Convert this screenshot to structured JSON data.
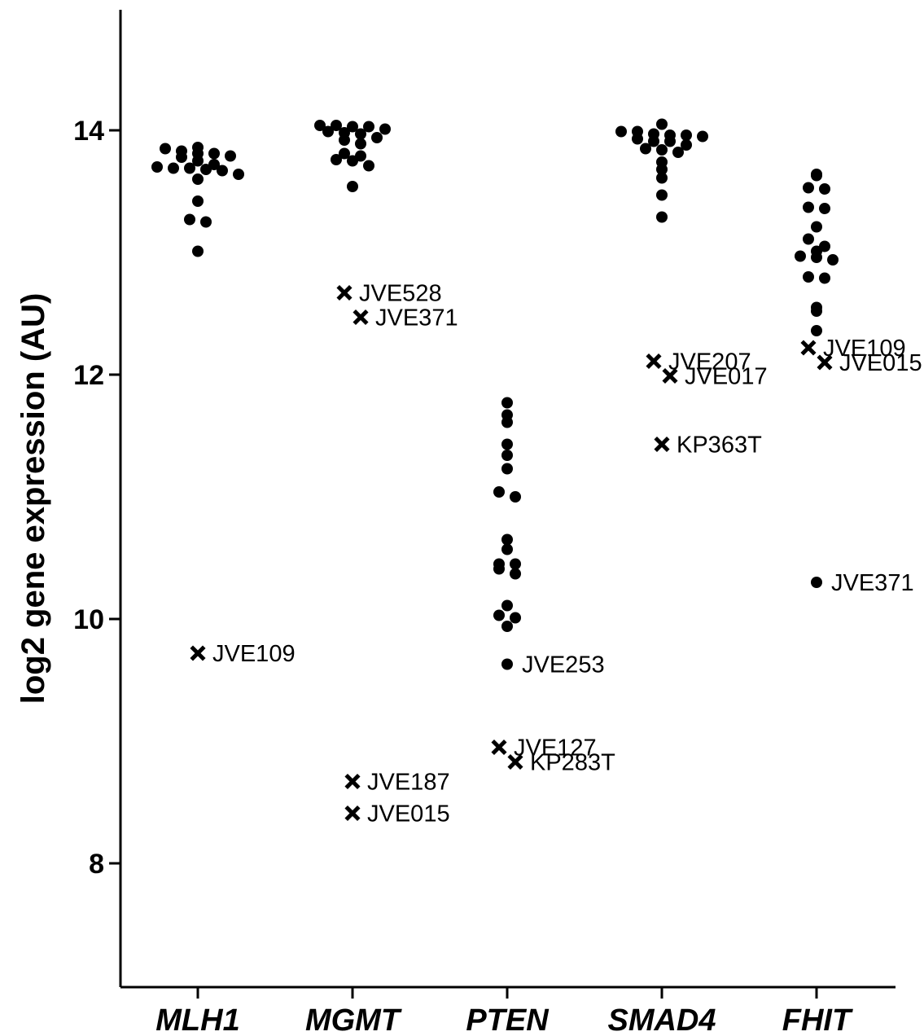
{
  "chart_data": {
    "type": "scatter",
    "title": "",
    "xlabel": "",
    "ylabel": "log2 gene expression (AU)",
    "ylim": [
      7,
      15
    ],
    "yticks": [
      8,
      10,
      12,
      14
    ],
    "ytick_labels": [
      "8",
      "10",
      "12",
      "14"
    ],
    "categories": [
      "MLH1",
      "MGMT",
      "PTEN",
      "SMAD4",
      "FHIT"
    ],
    "grid": false,
    "legend": "none",
    "marker_color": "#000000",
    "groups": [
      {
        "category": "MLH1",
        "dots": [
          13.86,
          13.85,
          13.83,
          13.81,
          13.81,
          13.79,
          13.78,
          13.75,
          13.72,
          13.7,
          13.69,
          13.69,
          13.68,
          13.67,
          13.64,
          13.6,
          13.42,
          13.27,
          13.25,
          13.01
        ],
        "outliers": [
          {
            "label": "JVE109",
            "value": 9.72,
            "marker": "cross"
          }
        ]
      },
      {
        "category": "MGMT",
        "dots": [
          14.04,
          14.04,
          14.03,
          14.03,
          14.01,
          13.99,
          13.98,
          13.97,
          13.94,
          13.92,
          13.89,
          13.81,
          13.79,
          13.76,
          13.75,
          13.71,
          13.54
        ],
        "outliers": [
          {
            "label": "JVE528",
            "value": 12.67,
            "marker": "cross"
          },
          {
            "label": "JVE371",
            "value": 12.47,
            "marker": "cross"
          },
          {
            "label": "JVE187",
            "value": 8.67,
            "marker": "cross"
          },
          {
            "label": "JVE015",
            "value": 8.41,
            "marker": "cross"
          }
        ]
      },
      {
        "category": "PTEN",
        "dots": [
          11.77,
          11.67,
          11.61,
          11.43,
          11.34,
          11.23,
          11.04,
          11.0,
          10.65,
          10.57,
          10.45,
          10.45,
          10.41,
          10.37,
          10.11,
          10.03,
          10.01,
          9.94
        ],
        "outliers": [
          {
            "label": "JVE253",
            "value": 9.63,
            "marker": "dot"
          },
          {
            "label": "JVE127",
            "value": 8.95,
            "marker": "cross"
          },
          {
            "label": "KP283T",
            "value": 8.83,
            "marker": "cross"
          }
        ]
      },
      {
        "category": "SMAD4",
        "dots": [
          14.05,
          13.99,
          13.99,
          13.97,
          13.96,
          13.96,
          13.95,
          13.93,
          13.91,
          13.91,
          13.88,
          13.85,
          13.84,
          13.82,
          13.74,
          13.68,
          13.61,
          13.47,
          13.29
        ],
        "outliers": [
          {
            "label": "JVE207",
            "value": 12.11,
            "marker": "cross"
          },
          {
            "label": "JVE017",
            "value": 11.99,
            "marker": "cross"
          },
          {
            "label": "KP363T",
            "value": 11.43,
            "marker": "cross"
          }
        ]
      },
      {
        "category": "FHIT",
        "dots": [
          13.64,
          13.63,
          13.53,
          13.52,
          13.37,
          13.36,
          13.21,
          13.11,
          13.05,
          13.01,
          12.97,
          12.96,
          12.94,
          12.8,
          12.79,
          12.55,
          12.52,
          12.36
        ],
        "outliers": [
          {
            "label": "JVE109",
            "value": 12.22,
            "marker": "cross"
          },
          {
            "label": "JVE015",
            "value": 12.1,
            "marker": "cross"
          },
          {
            "label": "JVE371",
            "value": 10.3,
            "marker": "dot"
          }
        ]
      }
    ]
  }
}
